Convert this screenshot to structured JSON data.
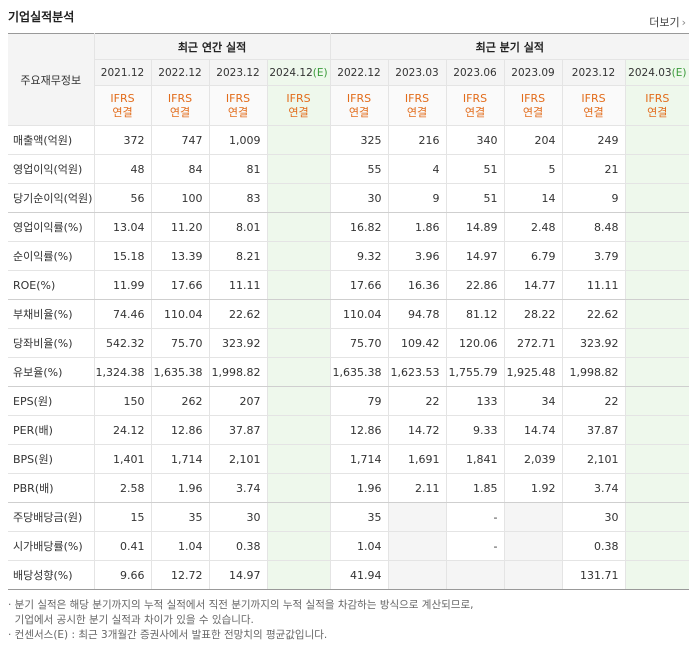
{
  "title": "기업실적분석",
  "more_label": "더보기",
  "more_arrow": "›",
  "row_header": "주요재무정보",
  "annual_group": "최근 연간 실적",
  "quarter_group": "최근 분기 실적",
  "annual_periods": [
    {
      "label": "2021.12",
      "est": false
    },
    {
      "label": "2022.12",
      "est": false
    },
    {
      "label": "2023.12",
      "est": false
    },
    {
      "label": "2024.12",
      "est": true
    }
  ],
  "quarter_periods": [
    {
      "label": "2022.12",
      "est": false
    },
    {
      "label": "2023.03",
      "est": false
    },
    {
      "label": "2023.06",
      "est": false
    },
    {
      "label": "2023.09",
      "est": false
    },
    {
      "label": "2023.12",
      "est": false
    },
    {
      "label": "2024.03",
      "est": true
    }
  ],
  "est_suffix": "(E)",
  "std_line1": "IFRS",
  "std_line2": "연결",
  "rows": [
    {
      "label": "매출액(억원)",
      "annual": [
        "372",
        "747",
        "1,009",
        ""
      ],
      "quarter": [
        "325",
        "216",
        "340",
        "204",
        "249",
        ""
      ]
    },
    {
      "label": "영업이익(억원)",
      "annual": [
        "48",
        "84",
        "81",
        ""
      ],
      "quarter": [
        "55",
        "4",
        "51",
        "5",
        "21",
        ""
      ]
    },
    {
      "label": "당기순이익(억원)",
      "annual": [
        "56",
        "100",
        "83",
        ""
      ],
      "quarter": [
        "30",
        "9",
        "51",
        "14",
        "9",
        ""
      ]
    },
    {
      "label": "영업이익률(%)",
      "annual": [
        "13.04",
        "11.20",
        "8.01",
        ""
      ],
      "quarter": [
        "16.82",
        "1.86",
        "14.89",
        "2.48",
        "8.48",
        ""
      ]
    },
    {
      "label": "순이익률(%)",
      "annual": [
        "15.18",
        "13.39",
        "8.21",
        ""
      ],
      "quarter": [
        "9.32",
        "3.96",
        "14.97",
        "6.79",
        "3.79",
        ""
      ]
    },
    {
      "label": "ROE(%)",
      "annual": [
        "11.99",
        "17.66",
        "11.11",
        ""
      ],
      "quarter": [
        "17.66",
        "16.36",
        "22.86",
        "14.77",
        "11.11",
        ""
      ]
    },
    {
      "label": "부채비율(%)",
      "annual": [
        "74.46",
        "110.04",
        "22.62",
        ""
      ],
      "quarter": [
        "110.04",
        "94.78",
        "81.12",
        "28.22",
        "22.62",
        ""
      ]
    },
    {
      "label": "당좌비율(%)",
      "annual": [
        "542.32",
        "75.70",
        "323.92",
        ""
      ],
      "quarter": [
        "75.70",
        "109.42",
        "120.06",
        "272.71",
        "323.92",
        ""
      ]
    },
    {
      "label": "유보율(%)",
      "annual": [
        "1,324.38",
        "1,635.38",
        "1,998.82",
        ""
      ],
      "quarter": [
        "1,635.38",
        "1,623.53",
        "1,755.79",
        "1,925.48",
        "1,998.82",
        ""
      ]
    },
    {
      "label": "EPS(원)",
      "annual": [
        "150",
        "262",
        "207",
        ""
      ],
      "quarter": [
        "79",
        "22",
        "133",
        "34",
        "22",
        ""
      ]
    },
    {
      "label": "PER(배)",
      "annual": [
        "24.12",
        "12.86",
        "37.87",
        ""
      ],
      "quarter": [
        "12.86",
        "14.72",
        "9.33",
        "14.74",
        "37.87",
        ""
      ]
    },
    {
      "label": "BPS(원)",
      "annual": [
        "1,401",
        "1,714",
        "2,101",
        ""
      ],
      "quarter": [
        "1,714",
        "1,691",
        "1,841",
        "2,039",
        "2,101",
        ""
      ]
    },
    {
      "label": "PBR(배)",
      "annual": [
        "2.58",
        "1.96",
        "3.74",
        ""
      ],
      "quarter": [
        "1.96",
        "2.11",
        "1.85",
        "1.92",
        "3.74",
        ""
      ]
    },
    {
      "label": "주당배당금(원)",
      "annual": [
        "15",
        "35",
        "30",
        ""
      ],
      "quarter": [
        "35",
        "",
        "-",
        "",
        "30",
        ""
      ]
    },
    {
      "label": "시가배당률(%)",
      "annual": [
        "0.41",
        "1.04",
        "0.38",
        ""
      ],
      "quarter": [
        "1.04",
        "",
        "-",
        "",
        "0.38",
        ""
      ]
    },
    {
      "label": "배당성향(%)",
      "annual": [
        "9.66",
        "12.72",
        "14.97",
        ""
      ],
      "quarter": [
        "41.94",
        "",
        "",
        "",
        "131.71",
        ""
      ]
    }
  ],
  "shaded_cells": [
    [
      13,
      1
    ],
    [
      13,
      3
    ],
    [
      14,
      1
    ],
    [
      14,
      3
    ],
    [
      15,
      1
    ],
    [
      15,
      2
    ],
    [
      15,
      3
    ]
  ],
  "row_groups_end": [
    2,
    5,
    8,
    12
  ],
  "notes": [
    "· 분기 실적은 해당 분기까지의 누적 실적에서 직전 분기까지의 누적 실적을 차감하는 방식으로 계산되므로,",
    "  기업에서 공시한 분기 실적과 차이가 있을 수 있습니다.",
    "· 컨센서스(E) : 최근 3개월간 증권사에서 발표한 전망치의 평균값입니다."
  ]
}
